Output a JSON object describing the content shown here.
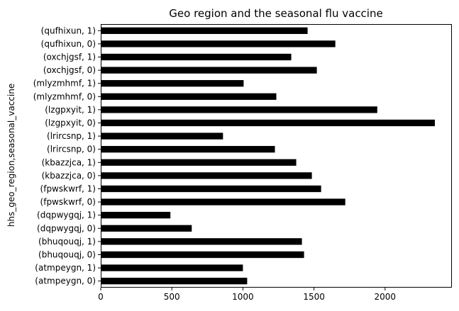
{
  "chart_data": {
    "type": "bar",
    "orientation": "horizontal",
    "title": "Geo region and the seasonal flu vaccine",
    "xlabel": "",
    "ylabel": "hhs_geo_region,seasonal_vaccine",
    "categories": [
      "(atmpeygn, 0)",
      "(atmpeygn, 1)",
      "(bhuqouqj, 0)",
      "(bhuqouqj, 1)",
      "(dqpwygqj, 0)",
      "(dqpwygqj, 1)",
      "(fpwskwrf, 0)",
      "(fpwskwrf, 1)",
      "(kbazzjca, 0)",
      "(kbazzjca, 1)",
      "(lrircsnp, 0)",
      "(lrircsnp, 1)",
      "(lzgpxyit, 0)",
      "(lzgpxyit, 1)",
      "(mlyzmhmf, 0)",
      "(mlyzmhmf, 1)",
      "(oxchjgsf, 0)",
      "(oxchjgsf, 1)",
      "(qufhixun, 0)",
      "(qufhixun, 1)"
    ],
    "values": [
      1030,
      1000,
      1430,
      1415,
      640,
      490,
      1720,
      1550,
      1485,
      1375,
      1225,
      860,
      2350,
      1945,
      1235,
      1005,
      1520,
      1340,
      1650,
      1455
    ],
    "xlim": [
      0,
      2470
    ],
    "xticks": [
      0,
      500,
      1000,
      1500,
      2000
    ],
    "grid": false,
    "legend": "none",
    "bar_color": "#000000"
  }
}
